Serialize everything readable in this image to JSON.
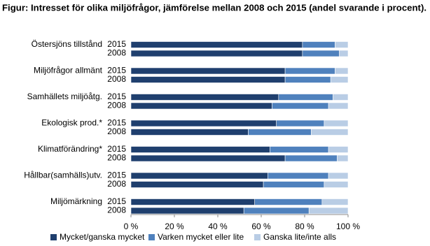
{
  "chart_data": {
    "type": "stacked-barh",
    "title": "Figur: Intresset för olika miljöfrågor, jämförelse mellan 2008 och 2015 (andel svarande i procent).",
    "groups": [
      "Östersjöns tillstånd",
      "Miljöfrågor allmänt",
      "Samhällets miljöåtg.",
      "Ekologisk prod.*",
      "Klimatförändring*",
      "Hållbar(samhälls)utv.",
      "Miljömärkning"
    ],
    "categories": [
      "2015",
      "2008",
      "2015",
      "2008",
      "2015",
      "2008",
      "2015",
      "2008",
      "2015",
      "2008",
      "2015",
      "2008",
      "2015",
      "2008"
    ],
    "series": [
      {
        "name": "Mycket/ganska mycket",
        "color": "#1f3f6e",
        "values": [
          79,
          79,
          71,
          71,
          68,
          65,
          67,
          54,
          64,
          71,
          63,
          61,
          57,
          52
        ]
      },
      {
        "name": "Varken mycket eller lite",
        "color": "#4f81bd",
        "values": [
          15,
          17,
          23,
          21,
          25,
          26,
          22,
          29,
          27,
          24,
          28,
          28,
          31,
          30
        ]
      },
      {
        "name": "Ganska lite/inte alls",
        "color": "#b9cde5",
        "values": [
          6,
          4,
          6,
          8,
          7,
          9,
          11,
          17,
          9,
          5,
          9,
          11,
          12,
          18
        ]
      }
    ],
    "xlim": [
      0,
      100
    ],
    "xticks": [
      {
        "value": 0,
        "label": "0 %"
      },
      {
        "value": 20,
        "label": "20 %"
      },
      {
        "value": 40,
        "label": "40 %"
      },
      {
        "value": 60,
        "label": "60 %"
      },
      {
        "value": 80,
        "label": "80 %"
      },
      {
        "value": 100,
        "label": "100 %"
      }
    ]
  }
}
